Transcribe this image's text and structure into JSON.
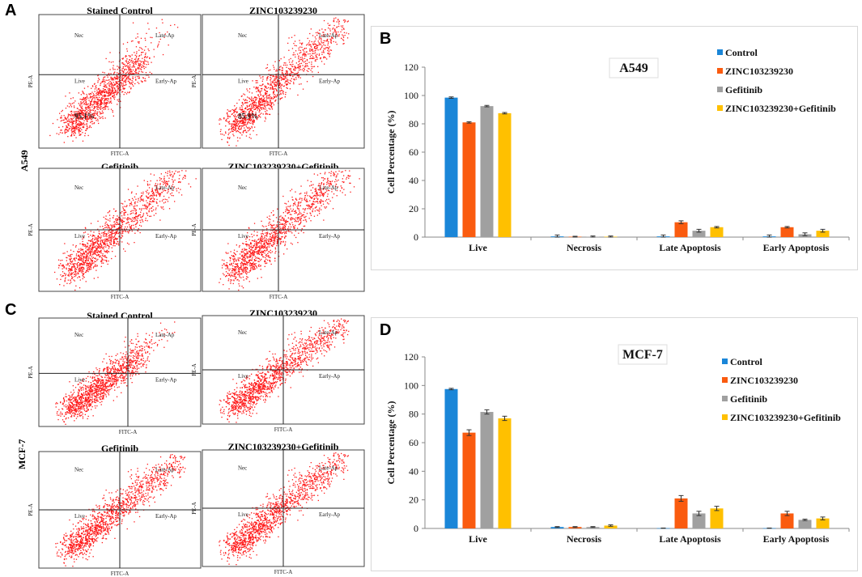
{
  "panels": {
    "A": {
      "letter": "A",
      "row_label": "A549",
      "plots": [
        {
          "title": "Stained Control",
          "quadrants": [
            "Nec",
            "Late-Ap",
            "Live",
            "Early-Ap"
          ],
          "percent": "95.1%",
          "x_axis": "FITC-A",
          "y_axis": "PE-A",
          "pattern": "control"
        },
        {
          "title": "ZINC103239230",
          "quadrants": [
            "Nec",
            "Late-Ap",
            "Live",
            "Early-Ap"
          ],
          "percent": "85.9%",
          "x_axis": "FITC-A",
          "y_axis": "PE-A",
          "pattern": "treated"
        },
        {
          "title": "Gefitinib",
          "quadrants": [
            "Nec",
            "Late-Ap",
            "Live",
            "Early-Ap"
          ],
          "percent": "",
          "x_axis": "FITC-A",
          "y_axis": "PE-A",
          "pattern": "gef"
        },
        {
          "title": "ZINC103239230+Gefitinib",
          "quadrants": [
            "Nec",
            "Late-Ap",
            "Live",
            "Early-Ap"
          ],
          "percent": "",
          "x_axis": "FITC-A",
          "y_axis": "PE-A",
          "pattern": "combo"
        }
      ]
    },
    "C": {
      "letter": "C",
      "row_label": "MCF-7",
      "plots": [
        {
          "title": "Stained Control",
          "quadrants": [
            "Nec",
            "Late-Ap",
            "Live",
            "Early-Ap"
          ],
          "percent": "",
          "x_axis": "FITC-A",
          "y_axis": "PE-A",
          "pattern": "control2"
        },
        {
          "title": "ZINC103239230",
          "quadrants": [
            "Nec",
            "Late-Ap",
            "Live",
            "Early-Ap"
          ],
          "percent": "",
          "x_axis": "FITC-A",
          "y_axis": "PE-A",
          "pattern": "treated2"
        },
        {
          "title": "Gefitinib",
          "quadrants": [
            "Nec",
            "Late-Ap",
            "Live",
            "Early-Ap"
          ],
          "percent": "",
          "x_axis": "FITC-A",
          "y_axis": "PE-A",
          "pattern": "gef2"
        },
        {
          "title": "ZINC103239230+Gefitinib",
          "quadrants": [
            "Nec",
            "Late-Ap",
            "Live",
            "Early-Ap"
          ],
          "percent": "",
          "x_axis": "FITC-A",
          "y_axis": "PE-A",
          "pattern": "combo2"
        }
      ]
    },
    "B": {
      "letter": "B"
    },
    "D": {
      "letter": "D"
    }
  },
  "colors": {
    "Control": "#1a86d8",
    "ZINC103239230": "#fa5b0f",
    "Gefitinib": "#a0a0a0",
    "ZINC103239230+Gefitinib": "#ffc000",
    "scatter": "#ff1a1a"
  },
  "chart_data": [
    {
      "panel": "B",
      "type": "bar",
      "title": "A549",
      "ylabel": "Cell Percentage (%)",
      "xlabel": "",
      "ylim": [
        0,
        120
      ],
      "yticks": [
        0,
        20,
        40,
        60,
        80,
        100,
        120
      ],
      "categories": [
        "Live",
        "Necrosis",
        "Late Apoptosis",
        "Early Apoptosis"
      ],
      "series": [
        {
          "name": "Control",
          "values": [
            98.5,
            0.5,
            0.5,
            0.5
          ],
          "errors": [
            0.5,
            1.0,
            1.0,
            1.0
          ]
        },
        {
          "name": "ZINC103239230",
          "values": [
            81,
            0.3,
            10.5,
            7
          ],
          "errors": [
            0.5,
            0.3,
            1.0,
            0.5
          ]
        },
        {
          "name": "Gefitinib",
          "values": [
            92.5,
            0.3,
            4.5,
            2
          ],
          "errors": [
            0.5,
            0.5,
            1.0,
            1.0
          ]
        },
        {
          "name": "ZINC103239230+Gefitinib",
          "values": [
            87.5,
            0.3,
            7,
            4.5
          ],
          "errors": [
            0.5,
            0.5,
            0.5,
            1.0
          ]
        }
      ],
      "legend_position": "top-right"
    },
    {
      "panel": "D",
      "type": "bar",
      "title": "MCF-7",
      "ylabel": "Cell Percentage (%)",
      "xlabel": "",
      "ylim": [
        0,
        120
      ],
      "yticks": [
        0,
        20,
        40,
        60,
        80,
        100,
        120
      ],
      "categories": [
        "Live",
        "Necrosis",
        "Late Apoptosis",
        "Early Apoptosis"
      ],
      "series": [
        {
          "name": "Control",
          "values": [
            97.5,
            1,
            0.2,
            0.2
          ],
          "errors": [
            0.5,
            0.3,
            0.1,
            0.1
          ]
        },
        {
          "name": "ZINC103239230",
          "values": [
            67,
            1,
            21,
            10.5
          ],
          "errors": [
            2,
            0.3,
            2,
            1.5
          ]
        },
        {
          "name": "Gefitinib",
          "values": [
            81.5,
            1,
            10.5,
            6
          ],
          "errors": [
            1.5,
            0.3,
            1.5,
            0.5
          ]
        },
        {
          "name": "ZINC103239230+Gefitinib",
          "values": [
            77,
            2,
            14,
            7
          ],
          "errors": [
            1.5,
            0.5,
            1.5,
            1.0
          ]
        }
      ],
      "legend_position": "top-right"
    }
  ]
}
